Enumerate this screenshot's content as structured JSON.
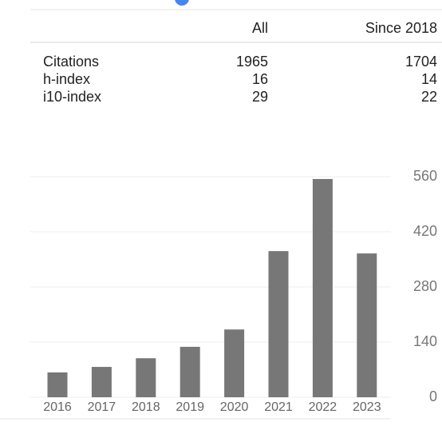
{
  "table": {
    "header": [
      "All",
      "Since 2018"
    ],
    "rows": [
      [
        "Citations",
        1965,
        1704
      ],
      [
        "h-index",
        16,
        14
      ],
      [
        "i10-index",
        29,
        22
      ]
    ]
  },
  "chart_data": {
    "type": "bar",
    "categories": [
      "2016",
      "2017",
      "2018",
      "2019",
      "2020",
      "2021",
      "2022",
      "2023"
    ],
    "values": [
      63,
      77,
      99,
      128,
      172,
      371,
      554,
      365
    ],
    "color": "#777777",
    "ylim": [
      0,
      560
    ],
    "yticks": [
      0,
      140,
      280,
      420,
      560
    ],
    "grid": true
  }
}
